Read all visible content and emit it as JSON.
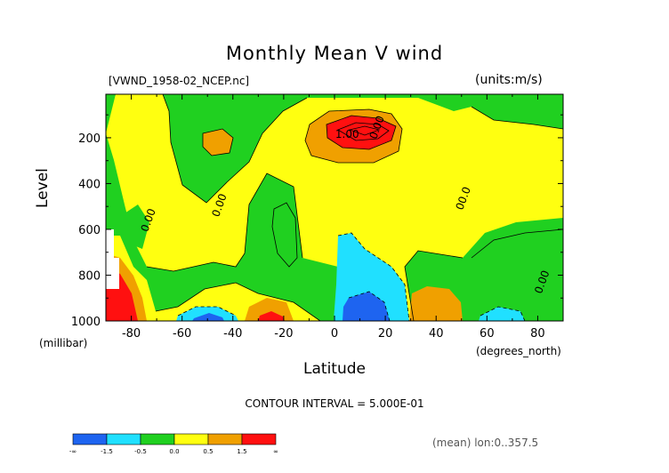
{
  "chart_data": {
    "type": "heatmap",
    "title": "Monthly Mean V wind",
    "file_label": "[VWND_1958-02_NCEP.nc]",
    "units_label": "(units:m/s)",
    "xlabel": "Latitude",
    "x_unit": "(degrees_north)",
    "ylabel": "Level",
    "y_unit": "(millibar)",
    "xlim": [
      -90,
      90
    ],
    "ylim": [
      1000,
      10
    ],
    "x_ticks": [
      -80,
      -60,
      -40,
      -20,
      0,
      20,
      40,
      60,
      80
    ],
    "y_ticks": [
      200,
      400,
      600,
      800,
      1000
    ],
    "contour_interval_text": "CONTOUR INTERVAL = 5.000E-01",
    "contour_labels": [
      {
        "text": "0.00",
        "x": 18,
        "y": 160
      },
      {
        "text": "1.00",
        "x": 5,
        "y": 200
      },
      {
        "text": "0.00",
        "x": -72,
        "y": 565
      },
      {
        "text": "0.00",
        "x": -44,
        "y": 500
      },
      {
        "text": "00.0",
        "x": 52,
        "y": 470
      },
      {
        "text": "0.00",
        "x": 83,
        "y": 835
      }
    ],
    "color_levels": [
      {
        "label": "-∞",
        "color": "#1e64f0"
      },
      {
        "label": "-1.5",
        "color": "#20e0ff"
      },
      {
        "label": "-0.5",
        "color": "#20d020"
      },
      {
        "label": "0.0",
        "color": "#ffff10"
      },
      {
        "label": "0.5",
        "color": "#f0a000"
      },
      {
        "label": "1.5",
        "color": "#ff1010"
      },
      {
        "label": "∞",
        "color": null
      }
    ],
    "regions": [
      {
        "band": 0.0,
        "shape": "upper-wide-yellow"
      },
      {
        "band": 0.5,
        "x": [
          -54,
          -41
        ],
        "y": [
          150,
          300
        ]
      },
      {
        "band": 0.5,
        "x": [
          -7,
          25
        ],
        "y": [
          90,
          330
        ]
      },
      {
        "band": 1.5,
        "x": [
          -3,
          23
        ],
        "y": [
          120,
          260
        ]
      },
      {
        "band": -0.5,
        "x": [
          -2,
          28
        ],
        "y": [
          700,
          1000
        ]
      },
      {
        "band": -1.5,
        "x": [
          6,
          24
        ],
        "y": [
          860,
          1000
        ]
      },
      {
        "band": 0.5,
        "x": [
          -88,
          -78
        ],
        "y": [
          750,
          1000
        ]
      },
      {
        "band": 1.5,
        "x": [
          -86,
          -80
        ],
        "y": [
          870,
          1000
        ]
      },
      {
        "band": 0.5,
        "x": [
          -32,
          -17
        ],
        "y": [
          860,
          1000
        ]
      },
      {
        "band": 1.5,
        "x": [
          -28,
          -22
        ],
        "y": [
          950,
          1000
        ]
      },
      {
        "band": 0.5,
        "x": [
          32,
          48
        ],
        "y": [
          830,
          1000
        ]
      },
      {
        "band": -1.5,
        "x": [
          -58,
          -45
        ],
        "y": [
          920,
          1000
        ]
      }
    ]
  },
  "footer": {
    "mean_info": "(mean) lon:0..357.5"
  }
}
